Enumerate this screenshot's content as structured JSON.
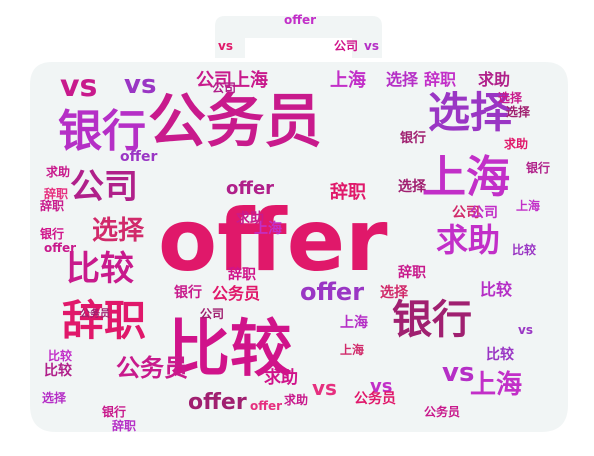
{
  "image": {
    "kind": "word-cloud",
    "shape": "briefcase silhouette",
    "background_color": "#f1f5f5",
    "palette": [
      "#e0186a",
      "#c81a8c",
      "#d129b0",
      "#b52fc6",
      "#e6307f",
      "#9a36c4"
    ]
  },
  "words": [
    {
      "text": "offer",
      "size": "xl",
      "color": "#e0186a"
    },
    {
      "text": "公务员",
      "size": "xl",
      "color": "#c81a8c"
    },
    {
      "text": "比较",
      "size": "xl",
      "color": "#d0138a"
    },
    {
      "text": "银行",
      "size": "lg",
      "color": "#b52fc6"
    },
    {
      "text": "选择",
      "size": "lg",
      "color": "#9a36c4"
    },
    {
      "text": "上海",
      "size": "lg",
      "color": "#c22fc8"
    },
    {
      "text": "辞职",
      "size": "lg",
      "color": "#e0186a"
    },
    {
      "text": "比较",
      "size": "md",
      "color": "#c81a8c"
    },
    {
      "text": "求助",
      "size": "md",
      "color": "#c22fc8"
    },
    {
      "text": "公司",
      "size": "md",
      "color": "#b0208a"
    },
    {
      "text": "银行",
      "size": "md",
      "color": "#a02070"
    },
    {
      "text": "vs",
      "size": "md",
      "color": "#c81a8c"
    },
    {
      "text": "选择",
      "size": "md",
      "color": "#d12a6a"
    },
    {
      "text": "公务员",
      "size": "md",
      "color": "#c81a8c"
    },
    {
      "text": "offer",
      "size": "md",
      "color": "#9a36c4"
    },
    {
      "text": "上海",
      "size": "md",
      "color": "#c22fc8"
    },
    {
      "text": "vs",
      "size": "md",
      "color": "#b52fc6"
    },
    {
      "text": "辞职",
      "size": "sm",
      "color": "#e0186a"
    },
    {
      "text": "求助",
      "size": "sm",
      "color": "#d0138a"
    },
    {
      "text": "上海",
      "size": "sm",
      "color": "#c81a8c"
    },
    {
      "text": "选择",
      "size": "sm",
      "color": "#b52fc6"
    },
    {
      "text": "公司",
      "size": "sm",
      "color": "#c81a8c"
    },
    {
      "text": "offer",
      "size": "sm",
      "color": "#a02070"
    },
    {
      "text": "辞职",
      "size": "sm",
      "color": "#c22fc8"
    },
    {
      "text": "求助",
      "size": "sm",
      "color": "#b0208a"
    },
    {
      "text": "vs",
      "size": "sm",
      "color": "#9a36c4"
    },
    {
      "text": "公司",
      "size": "sm",
      "color": "#d12a6a"
    },
    {
      "text": "银行",
      "size": "sm",
      "color": "#c81a8c"
    },
    {
      "text": "比较",
      "size": "sm",
      "color": "#b52fc6"
    },
    {
      "text": "公务员",
      "size": "sm",
      "color": "#e0186a"
    },
    {
      "text": "上海",
      "size": "sm",
      "color": "#c22fc8"
    },
    {
      "text": "选择",
      "size": "sm",
      "color": "#a02070"
    },
    {
      "text": "辞职",
      "size": "sm",
      "color": "#d0138a"
    },
    {
      "text": "offer",
      "size": "sm",
      "color": "#b0208a"
    },
    {
      "text": "vs",
      "size": "sm",
      "color": "#e6307f"
    },
    {
      "text": "比较",
      "size": "sm",
      "color": "#9a36c4"
    },
    {
      "text": "求助",
      "size": "xs",
      "color": "#c81a8c"
    },
    {
      "text": "公司",
      "size": "xs",
      "color": "#c22fc8"
    },
    {
      "text": "银行",
      "size": "xs",
      "color": "#a02070"
    },
    {
      "text": "上海",
      "size": "xs",
      "color": "#b52fc6"
    },
    {
      "text": "选择",
      "size": "xs",
      "color": "#d12a6a"
    },
    {
      "text": "辞职",
      "size": "xs",
      "color": "#c81a8c"
    },
    {
      "text": "offer",
      "size": "xs",
      "color": "#9a36c4"
    },
    {
      "text": "vs",
      "size": "xs",
      "color": "#c22fc8"
    },
    {
      "text": "公务员",
      "size": "xs",
      "color": "#e0186a"
    },
    {
      "text": "比较",
      "size": "xs",
      "color": "#b0208a"
    },
    {
      "text": "求助",
      "size": "xs",
      "color": "#c81a8c"
    },
    {
      "text": "公司",
      "size": "xs",
      "color": "#a02070"
    },
    {
      "text": "银行",
      "size": "xs",
      "color": "#d0138a"
    },
    {
      "text": "上海",
      "size": "xs",
      "color": "#c22fc8"
    },
    {
      "text": "选择",
      "size": "xs",
      "color": "#b52fc6"
    },
    {
      "text": "辞职",
      "size": "xs",
      "color": "#e6307f"
    },
    {
      "text": "offer",
      "size": "xs",
      "color": "#c81a8c"
    },
    {
      "text": "vs",
      "size": "xs",
      "color": "#9a36c4"
    },
    {
      "text": "比较",
      "size": "xs",
      "color": "#c22fc8"
    },
    {
      "text": "求助",
      "size": "xs",
      "color": "#e0186a"
    },
    {
      "text": "公司",
      "size": "xs",
      "color": "#b0208a"
    },
    {
      "text": "银行",
      "size": "xs",
      "color": "#c81a8c"
    },
    {
      "text": "公务员",
      "size": "xs",
      "color": "#a02070"
    },
    {
      "text": "上海",
      "size": "xs",
      "color": "#d12a6a"
    },
    {
      "text": "选择",
      "size": "xs",
      "color": "#c81a8c"
    },
    {
      "text": "辞职",
      "size": "xs",
      "color": "#b52fc6"
    },
    {
      "text": "offer",
      "size": "xs",
      "color": "#c22fc8"
    },
    {
      "text": "vs",
      "size": "xs",
      "color": "#e0186a"
    },
    {
      "text": "比较",
      "size": "xs",
      "color": "#9a36c4"
    },
    {
      "text": "求助",
      "size": "xs",
      "color": "#c81a8c"
    },
    {
      "text": "公司",
      "size": "xs",
      "color": "#d0138a"
    },
    {
      "text": "银行",
      "size": "xs",
      "color": "#b0208a"
    },
    {
      "text": "上海",
      "size": "xs",
      "color": "#c22fc8"
    },
    {
      "text": "选择",
      "size": "xs",
      "color": "#a02070"
    },
    {
      "text": "辞职",
      "size": "xs",
      "color": "#c81a8c"
    },
    {
      "text": "offer",
      "size": "xs",
      "color": "#e6307f"
    },
    {
      "text": "vs",
      "size": "xs",
      "color": "#b52fc6"
    },
    {
      "text": "公务员",
      "size": "xs",
      "color": "#c81a8c"
    }
  ]
}
